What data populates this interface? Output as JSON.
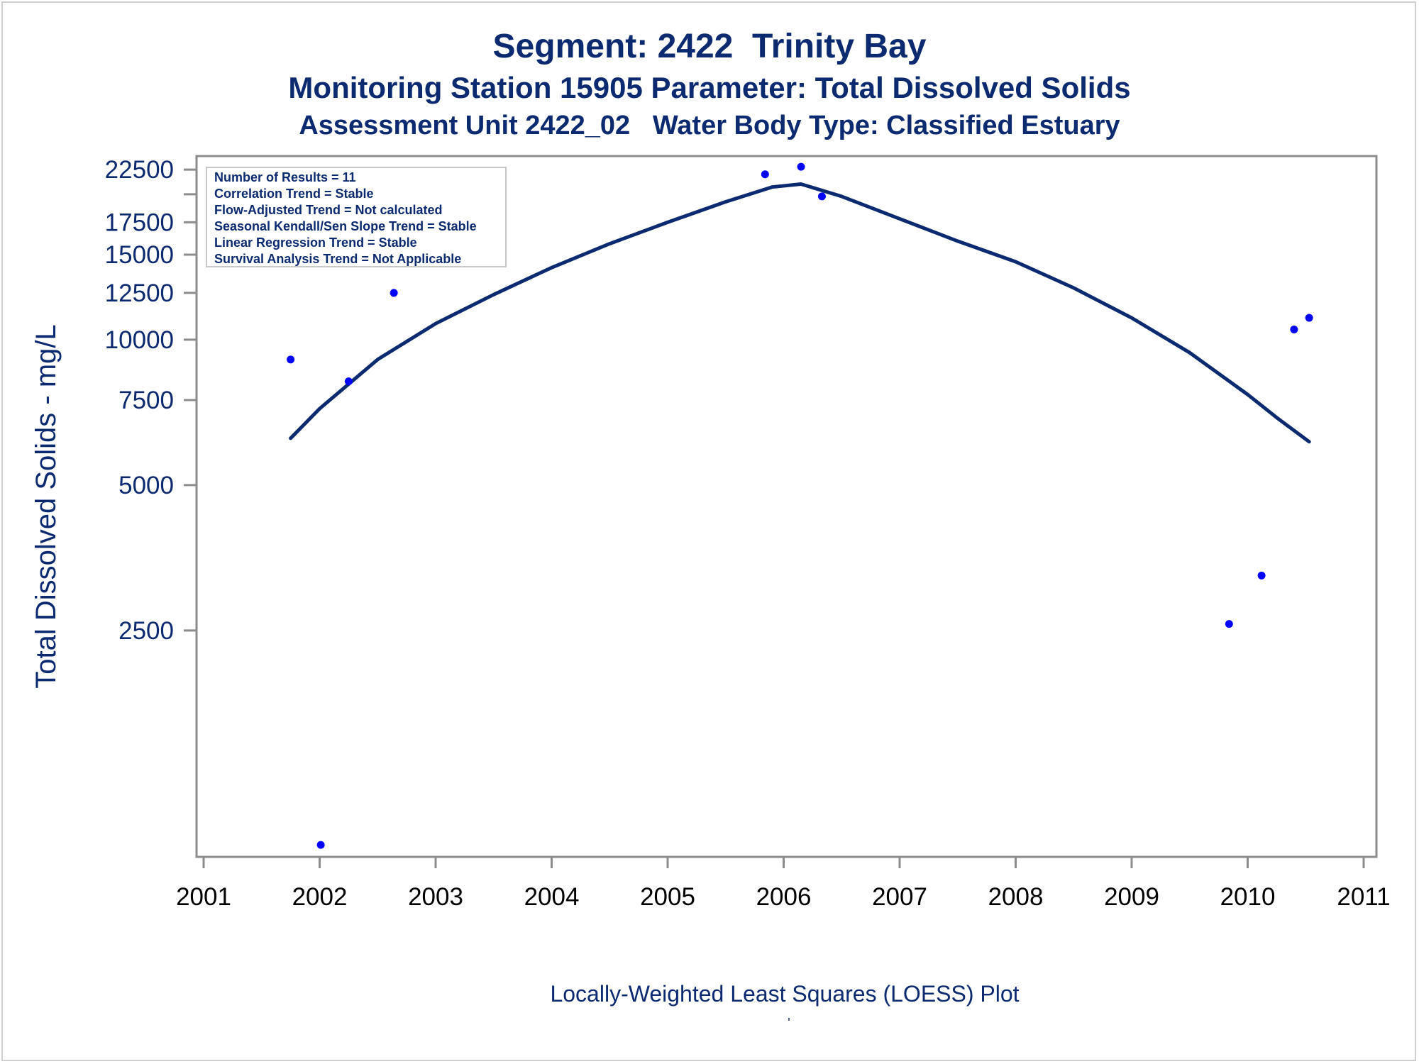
{
  "chart_data": {
    "type": "scatter",
    "title": "Segment: 2422  Trinity Bay",
    "subtitle": "Monitoring Station 15905 Parameter: Total Dissolved Solids",
    "subtitle2": "Assessment Unit 2422_02   Water Body Type: Classified Estuary",
    "ylabel": "Total Dissolved Solids - mg/L",
    "footnote": "Locally-Weighted Least Squares (LOESS) Plot",
    "xlim": [
      2001,
      2011
    ],
    "ylim": [
      850,
      24000
    ],
    "y_scale": "log",
    "grid": false,
    "x_ticks": [
      2001,
      2002,
      2003,
      2004,
      2005,
      2006,
      2007,
      2008,
      2009,
      2010,
      2011
    ],
    "y_ticks": [
      2500,
      5000,
      7500,
      10000,
      12500,
      15000,
      17500,
      22500
    ],
    "y_minor_ticks": [
      20000
    ],
    "stats": {
      "placement": "top-left",
      "lines": [
        "Number of Results = 11",
        "Correlation Trend = Stable",
        "Flow-Adjusted Trend = Not calculated",
        "Seasonal Kendall/Sen Slope Trend = Stable",
        "Linear Regression Trend = Stable",
        "Survival Analysis Trend = Not Applicable"
      ]
    },
    "series": [
      {
        "type": "scatter",
        "color": "#0000ff",
        "points": [
          [
            2001.75,
            9100
          ],
          [
            2002.01,
            900
          ],
          [
            2002.25,
            8200
          ],
          [
            2002.64,
            12500
          ],
          [
            2005.84,
            22000
          ],
          [
            2006.15,
            22800
          ],
          [
            2006.33,
            19800
          ],
          [
            2009.84,
            2580
          ],
          [
            2010.12,
            3250
          ],
          [
            2010.4,
            10500
          ],
          [
            2010.53,
            11100
          ]
        ]
      },
      {
        "type": "line",
        "color": "#0b2a6f",
        "points": [
          [
            2001.75,
            6250
          ],
          [
            2002.0,
            7200
          ],
          [
            2002.5,
            9100
          ],
          [
            2003.0,
            10800
          ],
          [
            2003.5,
            12400
          ],
          [
            2004.0,
            14100
          ],
          [
            2004.5,
            15800
          ],
          [
            2005.0,
            17500
          ],
          [
            2005.5,
            19300
          ],
          [
            2005.9,
            20700
          ],
          [
            2006.15,
            21000
          ],
          [
            2006.5,
            19800
          ],
          [
            2007.0,
            17800
          ],
          [
            2007.5,
            16000
          ],
          [
            2008.0,
            14500
          ],
          [
            2008.5,
            12800
          ],
          [
            2009.0,
            11100
          ],
          [
            2009.5,
            9400
          ],
          [
            2010.0,
            7700
          ],
          [
            2010.25,
            6900
          ],
          [
            2010.53,
            6150
          ]
        ]
      }
    ]
  }
}
